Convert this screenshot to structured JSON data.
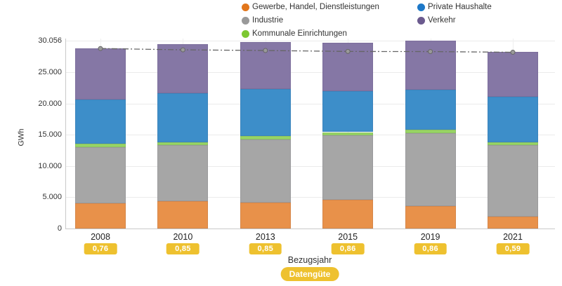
{
  "legend": {
    "items": [
      {
        "label": "Gewerbe, Handel, Dienstleistungen",
        "color": "#e2761b"
      },
      {
        "label": "Private Haushalte",
        "color": "#1d78c8"
      },
      {
        "label": "Industrie",
        "color": "#999999"
      },
      {
        "label": "Verkehr",
        "color": "#6b5a8e"
      },
      {
        "label": "Kommunale Einrichtungen",
        "color": "#7dc832"
      }
    ]
  },
  "y_axis": {
    "title": "GWh",
    "ticks": [
      "0",
      "5.000",
      "10.000",
      "15.000",
      "20.000",
      "25.000",
      "30.056"
    ],
    "tick_values": [
      0,
      5000,
      10000,
      15000,
      20000,
      25000,
      30056
    ],
    "max": 30056
  },
  "x_axis": {
    "title": "Bezugsjahr",
    "categories": [
      "2008",
      "2010",
      "2013",
      "2015",
      "2019",
      "2021"
    ]
  },
  "data_quality": {
    "label": "Datengüte",
    "values": [
      "0,76",
      "0,85",
      "0,85",
      "0,86",
      "0,86",
      "0,59"
    ],
    "badge_color": "#eec12f"
  },
  "chart_data": {
    "type": "bar",
    "stacked": true,
    "title": "",
    "xlabel": "Bezugsjahr",
    "ylabel": "GWh",
    "ylim": [
      0,
      30056
    ],
    "grid": true,
    "legend_position": "top",
    "categories": [
      "2008",
      "2010",
      "2013",
      "2015",
      "2019",
      "2021"
    ],
    "series": [
      {
        "name": "Gewerbe, Handel, Dienstleistungen",
        "color": "#e2761b",
        "bar_color": "#e8914a",
        "values": [
          4050,
          4390,
          4165,
          4615,
          3600,
          1915
        ]
      },
      {
        "name": "Industrie",
        "color": "#999999",
        "bar_color": "#a6a6a6",
        "values": [
          9010,
          9005,
          10130,
          10355,
          11600,
          11480
        ]
      },
      {
        "name": "Kommunale Einrichtungen",
        "color": "#7dc832",
        "bar_color": "#97d465",
        "values": [
          560,
          450,
          560,
          450,
          560,
          450
        ]
      },
      {
        "name": "Private Haushalte",
        "color": "#1d78c8",
        "bar_color": "#3d8ec9",
        "values": [
          6980,
          7770,
          7430,
          6530,
          6420,
          7205
        ]
      },
      {
        "name": "Verkehr",
        "color": "#6b5a8e",
        "bar_color": "#8577a5",
        "values": [
          8220,
          7880,
          7545,
          7770,
          7876,
          7205
        ]
      }
    ],
    "trend_line": {
      "name": "trend",
      "style": "dash-dot",
      "color": "#666666",
      "values": [
        28800,
        28590,
        28480,
        28330,
        28310,
        28200
      ]
    }
  }
}
